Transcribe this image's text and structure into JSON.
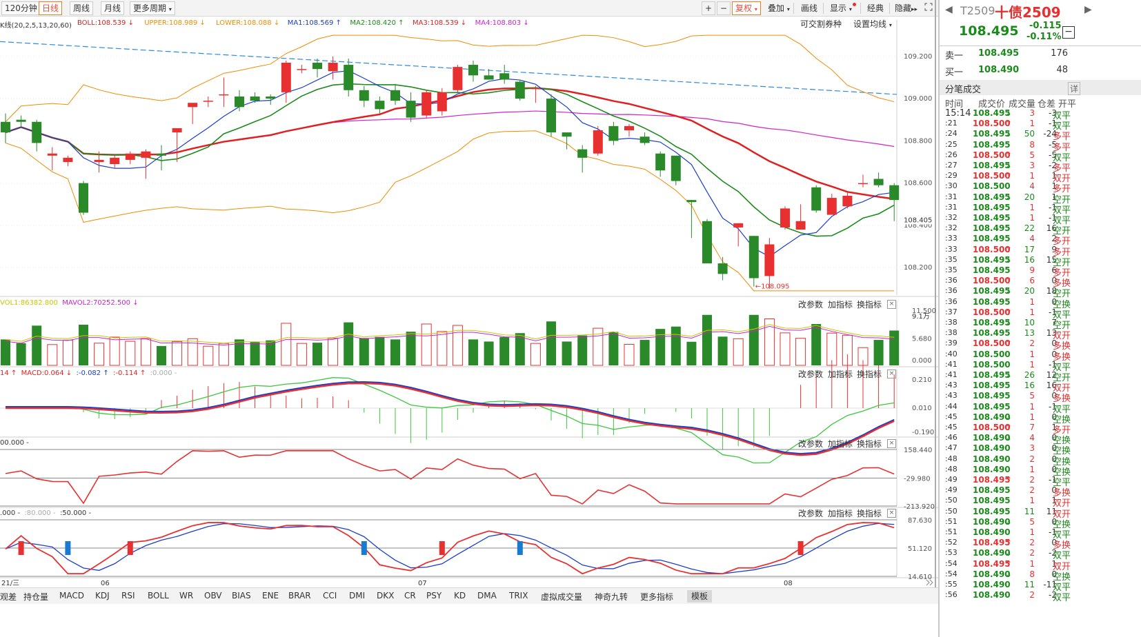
{
  "toolbar": {
    "periods": [
      "120分钟",
      "日线",
      "周线",
      "月线",
      "更多周期"
    ],
    "active_period": "日线",
    "tools": [
      "+",
      "−",
      "复权",
      "叠加",
      "画线",
      "显示",
      "经典",
      "隐藏"
    ],
    "right_links": [
      "可交割券种",
      "设置均线"
    ]
  },
  "indicator_line": {
    "prefix": "K线(20,2,5,13,20,60)",
    "items": [
      {
        "label": "BOLL:108.539",
        "arrow": "↓",
        "color": "#e02020"
      },
      {
        "label": "UPPER:108.989",
        "arrow": "↓",
        "color": "#f08c00"
      },
      {
        "label": "LOWER:108.088",
        "arrow": "↓",
        "color": "#f08c00"
      },
      {
        "label": "MA1:108.569",
        "arrow": "↑",
        "color": "#1a3dcc"
      },
      {
        "label": "MA2:108.420",
        "arrow": "↑",
        "color": "#1a8a1a"
      },
      {
        "label": "MA3:108.539",
        "arrow": "↓",
        "color": "#e02020"
      },
      {
        "label": "MA4:108.803",
        "arrow": "↓",
        "color": "#d020d0"
      }
    ]
  },
  "panel_controls": [
    "改参数",
    "加指标",
    "换指标"
  ],
  "volume_title": {
    "items": [
      "VOL1:86382.800",
      "MAVOL2:70252.500 ↓"
    ],
    "unit": "9.1万"
  },
  "macd_title": {
    "items": [
      "14 ↑",
      "MACD:0.064 ↓",
      ":-0.082 ↑",
      ":-0.114 ↑",
      ":0.000 -"
    ]
  },
  "p3_title": {
    "items": [
      "00.000 -"
    ]
  },
  "p4_title": {
    "items": [
      ".000 -",
      ":80.000 -",
      ":50.000 -"
    ]
  },
  "main_axis": [
    "109.200",
    "109.000",
    "108.800",
    "108.600",
    "108.405",
    "108.400",
    "108.200"
  ],
  "annotation_low": "←108.095",
  "vol_axis": [
    "11.500",
    "5.680",
    "0.000"
  ],
  "macd_axis": [
    "0.210",
    "0.010",
    "-0.190"
  ],
  "p3_axis": [
    "158.440",
    "-29.980",
    "-213.920"
  ],
  "p4_axis": [
    "87.630",
    "51.120",
    "14.610"
  ],
  "date_labels": [
    "21/三",
    "06",
    "07",
    "08"
  ],
  "bottom_tabs": [
    "观差",
    "持仓量",
    "MACD",
    "KDJ",
    "RSI",
    "BOLL",
    "WR",
    "OBV",
    "BIAS",
    "ENE",
    "BRAR",
    "CCI",
    "DMI",
    "DKX",
    "CR",
    "PSY",
    "KD",
    "DMA",
    "TRIX",
    "虚拟成交量",
    "神奇九转",
    "更多指标",
    "模板"
  ],
  "active_bottom_tab": "模板",
  "right_panel": {
    "code": "T2509",
    "name": "十债2509",
    "price": "108.495",
    "change": "-0.115",
    "change_pct": "-0.11%",
    "minus_btn": "−",
    "sell1": {
      "label": "卖一",
      "price": "108.495",
      "vol": "176"
    },
    "buy1": {
      "label": "买一",
      "price": "108.490",
      "vol": "48"
    },
    "ticks_title": "分笔成交",
    "ticks_detail": "详",
    "headers": [
      "时间",
      "成交价",
      "成交量",
      "仓差",
      "开平"
    ],
    "ticks": [
      {
        "t": "15:14",
        "p": "108.495",
        "d": "↓",
        "v": "3",
        "oi": "-3",
        "k": "双平"
      },
      {
        "t": ":21",
        "p": "108.500",
        "d": "↑",
        "v": "1",
        "oi": "-1",
        "k": "双平"
      },
      {
        "t": ":24",
        "p": "108.495",
        "d": "↓",
        "v": "50",
        "oi": "-24",
        "k": "多平"
      },
      {
        "t": ":25",
        "p": "108.495",
        "d": "",
        "v": "8",
        "oi": "-5",
        "k": "多平"
      },
      {
        "t": ":26",
        "p": "108.500",
        "d": "↑",
        "v": "5",
        "oi": "-5",
        "k": "双平"
      },
      {
        "t": ":27",
        "p": "108.495",
        "d": "↓",
        "v": "3",
        "oi": "-2",
        "k": "多平"
      },
      {
        "t": ":29",
        "p": "108.500",
        "d": "↑",
        "v": "1",
        "oi": "1",
        "k": "双开"
      },
      {
        "t": ":30",
        "p": "108.500",
        "d": "",
        "v": "4",
        "oi": "1",
        "k": "多开"
      },
      {
        "t": ":31",
        "p": "108.495",
        "d": "↓",
        "v": "20",
        "oi": "1",
        "k": "空开"
      },
      {
        "t": ":31",
        "p": "108.495",
        "d": "",
        "v": "1",
        "oi": "-1",
        "k": "双平"
      },
      {
        "t": ":32",
        "p": "108.495",
        "d": "",
        "v": "1",
        "oi": "-1",
        "k": "双平"
      },
      {
        "t": ":32",
        "p": "108.495",
        "d": "",
        "v": "22",
        "oi": "16",
        "k": "空开"
      },
      {
        "t": ":33",
        "p": "108.495",
        "d": "",
        "v": "4",
        "oi": "2",
        "k": "多开"
      },
      {
        "t": ":33",
        "p": "108.500",
        "d": "↑",
        "v": "17",
        "oi": "9",
        "k": "多开"
      },
      {
        "t": ":35",
        "p": "108.495",
        "d": "↓",
        "v": "16",
        "oi": "15",
        "k": "空开"
      },
      {
        "t": ":35",
        "p": "108.495",
        "d": "",
        "v": "9",
        "oi": "6",
        "k": "多开"
      },
      {
        "t": ":36",
        "p": "108.500",
        "d": "↑",
        "v": "6",
        "oi": "0",
        "k": "多换"
      },
      {
        "t": ":36",
        "p": "108.495",
        "d": "↓",
        "v": "20",
        "oi": "18",
        "k": "空开"
      },
      {
        "t": ":36",
        "p": "108.495",
        "d": "",
        "v": "1",
        "oi": "0",
        "k": "空换"
      },
      {
        "t": ":37",
        "p": "108.500",
        "d": "↑",
        "v": "1",
        "oi": "-1",
        "k": "双平"
      },
      {
        "t": ":38",
        "p": "108.495",
        "d": "↓",
        "v": "10",
        "oi": "7",
        "k": "空开"
      },
      {
        "t": ":38",
        "p": "108.495",
        "d": "",
        "v": "13",
        "oi": "13",
        "k": "双开"
      },
      {
        "t": ":39",
        "p": "108.500",
        "d": "↑",
        "v": "2",
        "oi": "0",
        "k": "多换"
      },
      {
        "t": ":40",
        "p": "108.500",
        "d": "",
        "v": "1",
        "oi": "0",
        "k": "多换"
      },
      {
        "t": ":41",
        "p": "108.500",
        "d": "",
        "v": "1",
        "oi": "-1",
        "k": "双平"
      },
      {
        "t": ":41",
        "p": "108.495",
        "d": "↓",
        "v": "26",
        "oi": "12",
        "k": "空开"
      },
      {
        "t": ":43",
        "p": "108.495",
        "d": "",
        "v": "16",
        "oi": "16",
        "k": "双开"
      },
      {
        "t": ":43",
        "p": "108.495",
        "d": "",
        "v": "5",
        "oi": "0",
        "k": "多换"
      },
      {
        "t": ":44",
        "p": "108.495",
        "d": "",
        "v": "1",
        "oi": "-1",
        "k": "双平"
      },
      {
        "t": ":45",
        "p": "108.490",
        "d": "↓",
        "v": "1",
        "oi": "0",
        "k": "空换"
      },
      {
        "t": ":45",
        "p": "108.500",
        "d": "↑",
        "v": "7",
        "oi": "1",
        "k": "多开"
      },
      {
        "t": ":46",
        "p": "108.490",
        "d": "↓",
        "v": "4",
        "oi": "0",
        "k": "空换"
      },
      {
        "t": ":47",
        "p": "108.490",
        "d": "",
        "v": "3",
        "oi": "0",
        "k": "空换"
      },
      {
        "t": ":48",
        "p": "108.490",
        "d": "",
        "v": "2",
        "oi": "0",
        "k": "空换"
      },
      {
        "t": ":48",
        "p": "108.490",
        "d": "",
        "v": "1",
        "oi": "0",
        "k": "空换"
      },
      {
        "t": ":49",
        "p": "108.495",
        "d": "↑",
        "v": "2",
        "oi": "-1",
        "k": "空平"
      },
      {
        "t": ":49",
        "p": "108.495",
        "d": "",
        "v": "2",
        "oi": "0",
        "k": "多换"
      },
      {
        "t": ":50",
        "p": "108.495",
        "d": "",
        "v": "1",
        "oi": "1",
        "k": "双开"
      },
      {
        "t": ":50",
        "p": "108.495",
        "d": "",
        "v": "11",
        "oi": "11",
        "k": "双开"
      },
      {
        "t": ":51",
        "p": "108.490",
        "d": "↓",
        "v": "5",
        "oi": "0",
        "k": "空换"
      },
      {
        "t": ":51",
        "p": "108.490",
        "d": "",
        "v": "1",
        "oi": "-1",
        "k": "双平"
      },
      {
        "t": ":52",
        "p": "108.495",
        "d": "↑",
        "v": "2",
        "oi": "0",
        "k": "多换"
      },
      {
        "t": ":53",
        "p": "108.490",
        "d": "↓",
        "v": "2",
        "oi": "-2",
        "k": "双平"
      },
      {
        "t": ":54",
        "p": "108.495",
        "d": "↑",
        "v": "1",
        "oi": "1",
        "k": "双开"
      },
      {
        "t": ":54",
        "p": "108.490",
        "d": "↓",
        "v": "8",
        "oi": "0",
        "k": "空换"
      },
      {
        "t": ":55",
        "p": "108.490",
        "d": "",
        "v": "11",
        "oi": "-11",
        "k": "双平"
      },
      {
        "t": ":56",
        "p": "108.490",
        "d": "",
        "v": "2",
        "oi": "-2",
        "k": "双平"
      }
    ]
  },
  "colors": {
    "up": "#e83030",
    "down": "#2a8a2a",
    "boll": "#e02020",
    "band": "#f08c00",
    "ma1": "#1a3dcc",
    "ma2": "#1a8a1a",
    "ma4": "#d020d0",
    "trend": "#2a8ae0"
  },
  "chart_data": [
    {
      "type": "candlestick",
      "name_overlays": [
        "BOLL",
        "UPPER",
        "LOWER",
        "MA1",
        "MA2",
        "MA3",
        "MA4"
      ],
      "ylim": [
        108.07,
        109.32
      ],
      "candles": [
        [
          108.89,
          108.84,
          108.93,
          108.79
        ],
        [
          108.9,
          108.89,
          108.92,
          108.86
        ],
        [
          108.89,
          108.79,
          108.9,
          108.75
        ],
        [
          108.73,
          108.74,
          108.77,
          108.66
        ],
        [
          108.7,
          108.72,
          108.73,
          108.68
        ],
        [
          108.6,
          108.46,
          108.61,
          108.45
        ],
        [
          108.7,
          108.71,
          108.75,
          108.65
        ],
        [
          108.69,
          108.72,
          108.73,
          108.67
        ],
        [
          108.71,
          108.74,
          108.75,
          108.69
        ],
        [
          108.72,
          108.75,
          108.76,
          108.62
        ],
        [
          108.74,
          108.73,
          108.78,
          108.66
        ],
        [
          108.84,
          108.86,
          108.85,
          108.7
        ],
        [
          108.96,
          108.98,
          108.97,
          108.88
        ],
        [
          108.99,
          108.99,
          109.01,
          108.96
        ],
        [
          109.02,
          109.02,
          109.1,
          108.96
        ],
        [
          109.01,
          108.96,
          109.04,
          108.94
        ],
        [
          109.01,
          108.99,
          109.03,
          108.98
        ],
        [
          109.01,
          109.0,
          109.02,
          108.97
        ],
        [
          109.03,
          109.17,
          109.18,
          108.98
        ],
        [
          109.14,
          109.14,
          109.16,
          109.12
        ],
        [
          109.17,
          109.14,
          109.19,
          109.1
        ],
        [
          109.13,
          109.17,
          109.2,
          109.09
        ],
        [
          109.16,
          109.04,
          109.19,
          109.01
        ],
        [
          109.04,
          108.99,
          109.06,
          108.96
        ],
        [
          108.99,
          108.95,
          109.01,
          108.93
        ],
        [
          109.04,
          108.99,
          109.07,
          108.97
        ],
        [
          108.99,
          108.91,
          109.03,
          108.89
        ],
        [
          108.92,
          109.03,
          109.04,
          108.91
        ],
        [
          108.94,
          109.03,
          109.05,
          108.92
        ],
        [
          109.04,
          109.15,
          109.16,
          109.03
        ],
        [
          109.16,
          109.11,
          109.18,
          109.08
        ],
        [
          109.11,
          109.09,
          109.14,
          109.09
        ],
        [
          109.12,
          109.09,
          109.16,
          109.07
        ],
        [
          109.08,
          109.0,
          109.09,
          108.99
        ],
        [
          109.05,
          109.05,
          109.06,
          108.98
        ],
        [
          109.0,
          108.84,
          109.02,
          108.82
        ],
        [
          108.84,
          108.82,
          108.83,
          108.76
        ],
        [
          108.76,
          108.72,
          108.78,
          108.65
        ],
        [
          108.74,
          108.85,
          108.87,
          108.73
        ],
        [
          108.87,
          108.8,
          108.89,
          108.78
        ],
        [
          108.85,
          108.87,
          108.88,
          108.82
        ],
        [
          108.82,
          108.79,
          108.84,
          108.78
        ],
        [
          108.74,
          108.66,
          108.75,
          108.63
        ],
        [
          108.73,
          108.61,
          108.72,
          108.59
        ],
        [
          108.52,
          108.51,
          108.52,
          108.34
        ],
        [
          108.42,
          108.22,
          108.43,
          108.22
        ],
        [
          108.22,
          108.17,
          108.25,
          108.14
        ],
        [
          108.39,
          108.41,
          108.41,
          108.3
        ],
        [
          108.35,
          108.15,
          108.35,
          108.11
        ],
        [
          108.16,
          108.31,
          108.34,
          108.1
        ],
        [
          108.39,
          108.48,
          108.49,
          108.38
        ],
        [
          108.38,
          108.42,
          108.5,
          108.39
        ],
        [
          108.58,
          108.47,
          108.59,
          108.46
        ],
        [
          108.45,
          108.53,
          108.55,
          108.46
        ],
        [
          108.49,
          108.54,
          108.56,
          108.48
        ],
        [
          108.6,
          108.6,
          108.64,
          108.58
        ],
        [
          108.62,
          108.59,
          108.65,
          108.58
        ],
        [
          108.59,
          108.52,
          108.6,
          108.42
        ]
      ],
      "last_price": "108.405"
    },
    {
      "type": "bar",
      "name": "VOL",
      "ylim": [
        0,
        11.5
      ],
      "x_index": "candle"
    },
    {
      "type": "macd",
      "ylim": [
        -0.19,
        0.21
      ]
    },
    {
      "type": "line",
      "ylim": [
        -213.92,
        158.44
      ]
    },
    {
      "type": "line",
      "ylim": [
        14.61,
        87.63
      ]
    }
  ]
}
